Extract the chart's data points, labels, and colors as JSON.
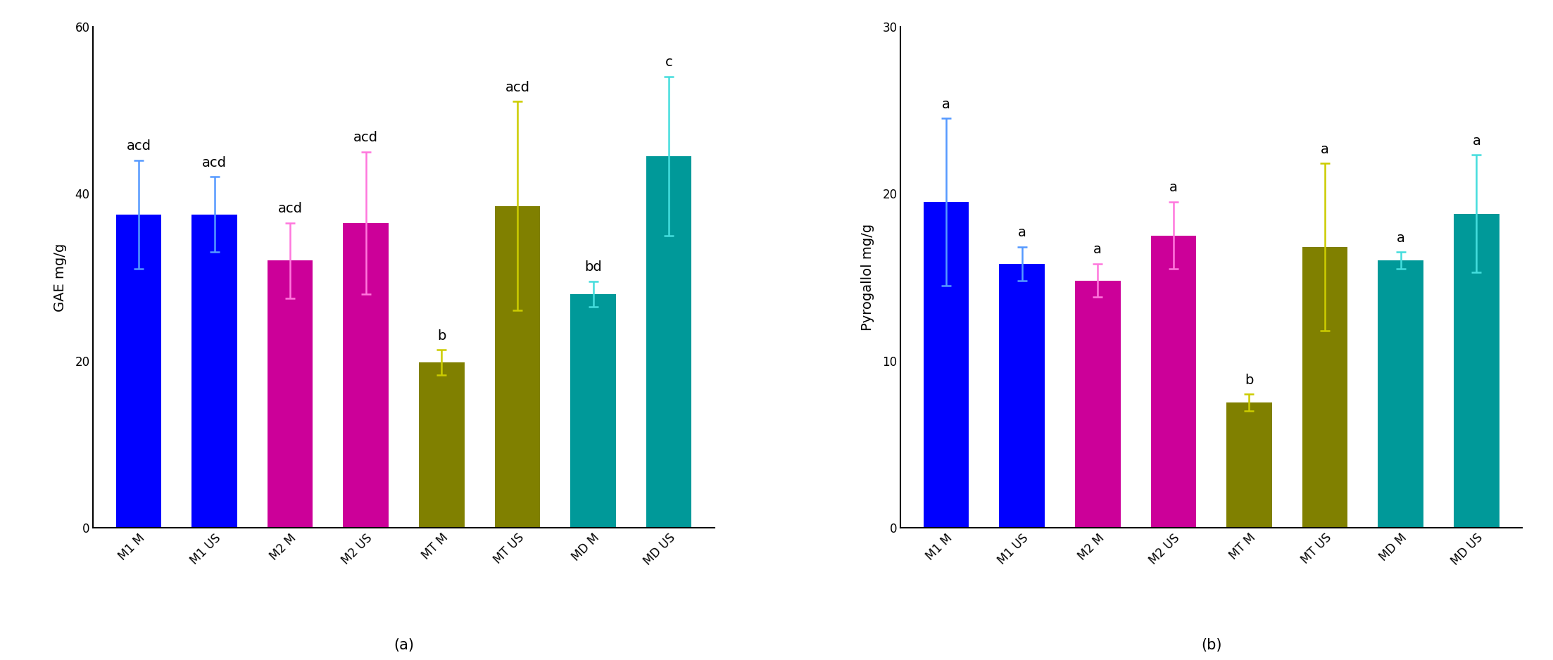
{
  "chart_a": {
    "categories": [
      "M1 M",
      "M1 US",
      "M2 M",
      "M2 US",
      "MT M",
      "MT US",
      "MD M",
      "MD US"
    ],
    "values": [
      37.5,
      37.5,
      32.0,
      36.5,
      19.8,
      38.5,
      28.0,
      44.5
    ],
    "errors": [
      6.5,
      4.5,
      4.5,
      8.5,
      1.5,
      12.5,
      1.5,
      9.5
    ],
    "colors": [
      "#0000FF",
      "#0000FF",
      "#CC0099",
      "#CC0099",
      "#808000",
      "#808000",
      "#009999",
      "#009999"
    ],
    "error_colors": [
      "#5599FF",
      "#5599FF",
      "#FF77DD",
      "#FF77DD",
      "#CCCC00",
      "#CCCC00",
      "#44DDDD",
      "#44DDDD"
    ],
    "labels": [
      "acd",
      "acd",
      "acd",
      "acd",
      "b",
      "acd",
      "bd",
      "c"
    ],
    "ylabel": "GAE mg/g",
    "ylim": [
      0,
      60
    ],
    "yticks": [
      0,
      20,
      40,
      60
    ],
    "panel_label": "(a)"
  },
  "chart_b": {
    "categories": [
      "M1 M",
      "M1 US",
      "M2 M",
      "M2 US",
      "MT M",
      "MT US",
      "MD M",
      "MD US"
    ],
    "values": [
      19.5,
      15.8,
      14.8,
      17.5,
      7.5,
      16.8,
      16.0,
      18.8
    ],
    "errors": [
      5.0,
      1.0,
      1.0,
      2.0,
      0.5,
      5.0,
      0.5,
      3.5
    ],
    "colors": [
      "#0000FF",
      "#0000FF",
      "#CC0099",
      "#CC0099",
      "#808000",
      "#808000",
      "#009999",
      "#009999"
    ],
    "error_colors": [
      "#5599FF",
      "#5599FF",
      "#FF77DD",
      "#FF77DD",
      "#CCCC00",
      "#CCCC00",
      "#44DDDD",
      "#44DDDD"
    ],
    "labels": [
      "a",
      "a",
      "a",
      "a",
      "b",
      "a",
      "a",
      "a"
    ],
    "ylabel": "Pyrogallol mg/g",
    "ylim": [
      0,
      30
    ],
    "yticks": [
      0,
      10,
      20,
      30
    ],
    "panel_label": "(b)"
  },
  "bar_width": 0.6,
  "tick_fontsize": 12,
  "ylabel_fontsize": 14,
  "panel_label_fontsize": 15,
  "stat_label_fontsize": 14,
  "background_color": "#ffffff"
}
